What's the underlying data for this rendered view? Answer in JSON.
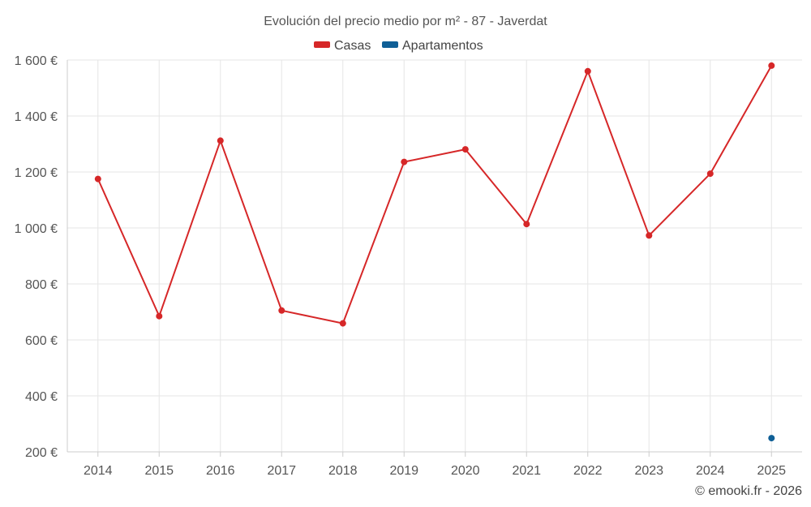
{
  "chart_data": {
    "type": "line",
    "title": "Evolución del precio medio por m² - 87 - Javerdat",
    "categories": [
      "2014",
      "2015",
      "2016",
      "2017",
      "2018",
      "2019",
      "2020",
      "2021",
      "2022",
      "2023",
      "2024",
      "2025"
    ],
    "series": [
      {
        "name": "Casas",
        "color": "#d62728",
        "values": [
          1175,
          685,
          1312,
          705,
          659,
          1236,
          1281,
          1014,
          1560,
          973,
          1194,
          1580
        ]
      },
      {
        "name": "Apartamentos",
        "color": "#0f5f96",
        "values": [
          null,
          null,
          null,
          null,
          null,
          null,
          null,
          null,
          null,
          null,
          null,
          249
        ]
      }
    ],
    "ylim": [
      200,
      1600
    ],
    "yticks": [
      200,
      400,
      600,
      800,
      1000,
      1200,
      1400,
      1600
    ],
    "ytick_labels": [
      "200 €",
      "400 €",
      "600 €",
      "800 €",
      "1 000 €",
      "1 200 €",
      "1 400 €",
      "1 600 €"
    ],
    "legend_position": "top-center",
    "grid": true
  },
  "credit": "© emooki.fr - 2026"
}
